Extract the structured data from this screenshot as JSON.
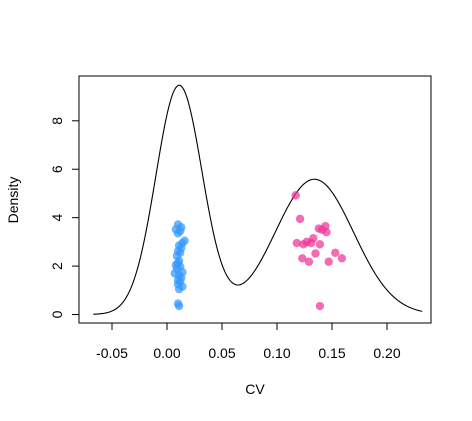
{
  "chart_data": {
    "type": "scatter",
    "title": "",
    "xlabel": "CV",
    "ylabel": "Density",
    "xlim": [
      -0.08,
      0.24
    ],
    "ylim": [
      -0.35,
      9.85
    ],
    "x_ticks": [
      -0.05,
      0.0,
      0.05,
      0.1,
      0.15,
      0.2
    ],
    "x_tick_labels": [
      "-0.05",
      "0.00",
      "0.05",
      "0.10",
      "0.15",
      "0.20"
    ],
    "y_ticks": [
      0,
      2,
      4,
      6,
      8
    ],
    "y_tick_labels": [
      "0",
      "2",
      "4",
      "6",
      "8"
    ],
    "grid": false,
    "density_curve": {
      "x_range": [
        -0.067,
        0.232
      ],
      "components": [
        {
          "weight": 0.5,
          "mean": 0.011,
          "sd": 0.0211
        },
        {
          "weight": 0.5,
          "mean": 0.134,
          "sd": 0.0357
        }
      ]
    },
    "series": [
      {
        "color": "#3399ff",
        "points": [
          [
            0.01,
            3.72
          ],
          [
            0.013,
            3.6
          ],
          [
            0.008,
            3.52
          ],
          [
            0.012,
            3.45
          ],
          [
            0.01,
            3.35
          ],
          [
            0.016,
            3.05
          ],
          [
            0.014,
            2.95
          ],
          [
            0.011,
            2.85
          ],
          [
            0.013,
            2.75
          ],
          [
            0.01,
            2.62
          ],
          [
            0.012,
            2.55
          ],
          [
            0.009,
            2.42
          ],
          [
            0.011,
            2.22
          ],
          [
            0.01,
            2.12
          ],
          [
            0.008,
            2.05
          ],
          [
            0.012,
            1.98
          ],
          [
            0.009,
            1.9
          ],
          [
            0.014,
            1.75
          ],
          [
            0.007,
            1.7
          ],
          [
            0.011,
            1.62
          ],
          [
            0.013,
            1.52
          ],
          [
            0.01,
            1.43
          ],
          [
            0.012,
            1.35
          ],
          [
            0.01,
            1.25
          ],
          [
            0.014,
            1.15
          ],
          [
            0.011,
            1.05
          ],
          [
            0.01,
            0.45
          ],
          [
            0.011,
            0.35
          ]
        ]
      },
      {
        "color": "#ee3399",
        "points": [
          [
            0.117,
            4.92
          ],
          [
            0.121,
            3.95
          ],
          [
            0.144,
            3.65
          ],
          [
            0.138,
            3.55
          ],
          [
            0.141,
            3.5
          ],
          [
            0.145,
            3.4
          ],
          [
            0.133,
            3.15
          ],
          [
            0.127,
            3.0
          ],
          [
            0.131,
            2.95
          ],
          [
            0.118,
            2.95
          ],
          [
            0.124,
            2.9
          ],
          [
            0.139,
            2.9
          ],
          [
            0.153,
            2.55
          ],
          [
            0.135,
            2.52
          ],
          [
            0.123,
            2.32
          ],
          [
            0.159,
            2.32
          ],
          [
            0.129,
            2.18
          ],
          [
            0.147,
            2.18
          ],
          [
            0.139,
            0.35
          ]
        ]
      }
    ]
  }
}
